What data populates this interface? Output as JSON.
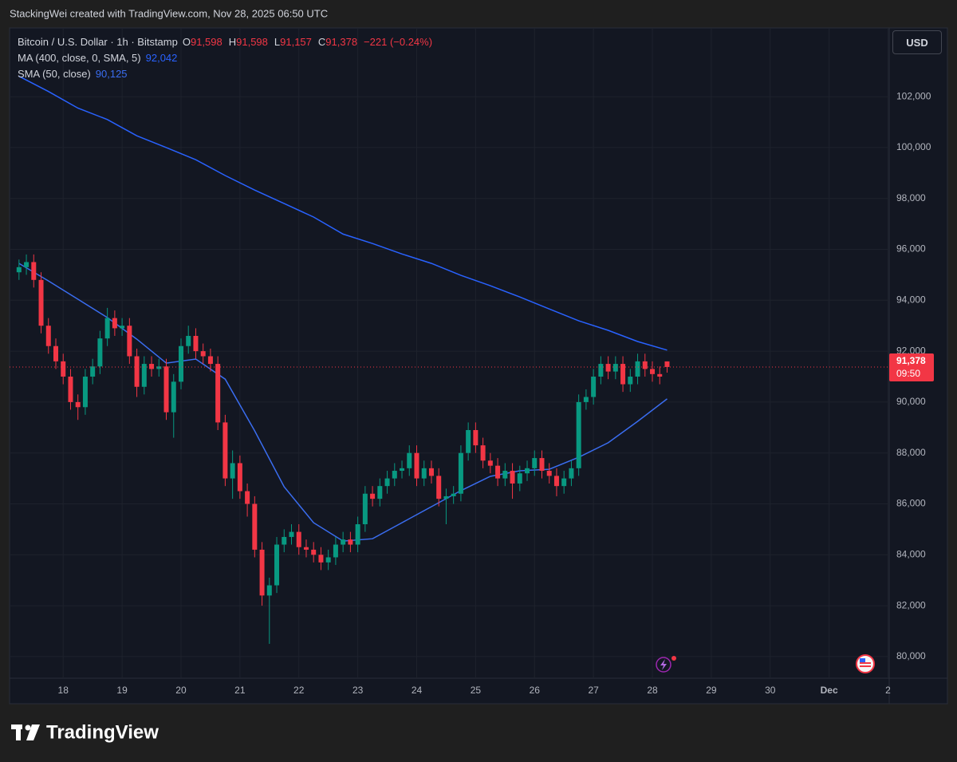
{
  "header": {
    "attribution": "StackingWei created with TradingView.com, Nov 28, 2025 06:50 UTC"
  },
  "chart_data": {
    "type": "candlestick",
    "title": "Bitcoin / U.S. Dollar · 1h · Bitstamp",
    "ohlc_legend": [
      {
        "key": "O",
        "value": "91,598"
      },
      {
        "key": "H",
        "value": "91,598"
      },
      {
        "key": "L",
        "value": "91,157"
      },
      {
        "key": "C",
        "value": "91,378"
      }
    ],
    "change": "−221 (−0.24%)",
    "currency": "USD",
    "up_color": "#089981",
    "down_color": "#f23645",
    "x": [
      17.25,
      17.375,
      17.5,
      17.625,
      17.75,
      17.875,
      18,
      18.125,
      18.25,
      18.375,
      18.5,
      18.625,
      18.75,
      18.875,
      19,
      19.125,
      19.25,
      19.375,
      19.5,
      19.625,
      19.75,
      19.875,
      20,
      20.125,
      20.25,
      20.375,
      20.5,
      20.625,
      20.75,
      20.875,
      21,
      21.125,
      21.25,
      21.375,
      21.5,
      21.625,
      21.75,
      21.875,
      22,
      22.125,
      22.25,
      22.375,
      22.5,
      22.625,
      22.75,
      22.875,
      23,
      23.125,
      23.25,
      23.375,
      23.5,
      23.625,
      23.75,
      23.875,
      24,
      24.125,
      24.25,
      24.375,
      24.5,
      24.625,
      24.75,
      24.875,
      25,
      25.125,
      25.25,
      25.375,
      25.5,
      25.625,
      25.75,
      25.875,
      26,
      26.125,
      26.25,
      26.375,
      26.5,
      26.625,
      26.75,
      26.875,
      27,
      27.125,
      27.25,
      27.375,
      27.5,
      27.625,
      27.75,
      27.875,
      28,
      28.125,
      28.25
    ],
    "open": [
      95100,
      95300,
      95500,
      94800,
      93000,
      92200,
      91600,
      91000,
      90000,
      89800,
      91000,
      91400,
      92500,
      93300,
      92900,
      93000,
      91800,
      90600,
      91500,
      91300,
      91400,
      89600,
      90800,
      92200,
      92600,
      92000,
      91800,
      91500,
      89200,
      87000,
      87600,
      86500,
      86000,
      84200,
      82400,
      82800,
      84400,
      84700,
      84900,
      84300,
      84200,
      84000,
      83700,
      83900,
      84400,
      84600,
      84400,
      85200,
      86400,
      86200,
      86700,
      87000,
      87300,
      87400,
      88000,
      87000,
      87400,
      87100,
      86200,
      86300,
      86400,
      88000,
      88900,
      88300,
      87700,
      87500,
      87000,
      87300,
      86800,
      87200,
      87400,
      87800,
      87300,
      87100,
      86700,
      87000,
      87400,
      90000,
      90200,
      91000,
      91500,
      91200,
      91500,
      90700,
      91000,
      91600,
      91300,
      91100,
      91598
    ],
    "high": [
      95600,
      95800,
      95800,
      95100,
      93300,
      92500,
      91900,
      91300,
      90300,
      91300,
      91700,
      92800,
      93700,
      93600,
      93300,
      93300,
      92100,
      91800,
      91800,
      91700,
      91700,
      91100,
      92500,
      93000,
      92900,
      92300,
      92100,
      91800,
      89500,
      88100,
      87900,
      86800,
      86300,
      84500,
      83100,
      84700,
      85000,
      85200,
      85200,
      84600,
      84500,
      84300,
      84200,
      84700,
      84900,
      84900,
      85500,
      86700,
      86700,
      87000,
      87300,
      87600,
      87700,
      88300,
      88300,
      87700,
      87700,
      87400,
      86600,
      86700,
      88300,
      89200,
      89200,
      88600,
      88000,
      87800,
      87600,
      87600,
      87500,
      87700,
      88100,
      88100,
      87600,
      87400,
      87300,
      87700,
      90300,
      90500,
      91300,
      91800,
      91800,
      91800,
      91800,
      91300,
      91900,
      91900,
      91600,
      91400,
      91598
    ],
    "low": [
      94800,
      95000,
      94500,
      92700,
      91900,
      91300,
      90700,
      89700,
      89300,
      89500,
      90700,
      91100,
      92200,
      92600,
      92600,
      91500,
      90200,
      90300,
      91000,
      91000,
      89300,
      88600,
      90500,
      91900,
      91700,
      91500,
      91200,
      88900,
      86700,
      86200,
      86200,
      85500,
      83900,
      82000,
      80500,
      82500,
      84100,
      84400,
      84000,
      83900,
      83700,
      83400,
      83400,
      83600,
      84100,
      84100,
      84100,
      84900,
      85900,
      85900,
      86400,
      86700,
      87000,
      87100,
      86700,
      86700,
      86800,
      85900,
      85200,
      86000,
      86100,
      87700,
      88000,
      87400,
      87200,
      86700,
      86700,
      86200,
      86500,
      86900,
      87100,
      87000,
      86800,
      86300,
      86400,
      86700,
      87100,
      89700,
      89900,
      90700,
      90900,
      90900,
      90400,
      90400,
      90700,
      91000,
      90800,
      90700,
      91157
    ],
    "close": [
      95300,
      95500,
      94800,
      93000,
      92200,
      91600,
      91000,
      90000,
      89800,
      91000,
      91400,
      92500,
      93300,
      92900,
      93000,
      91800,
      90600,
      91500,
      91300,
      91400,
      89600,
      90800,
      92200,
      92600,
      92000,
      91800,
      91500,
      89200,
      87000,
      87600,
      86500,
      86000,
      84200,
      82400,
      82800,
      84400,
      84700,
      84900,
      84300,
      84200,
      84000,
      83700,
      83900,
      84400,
      84600,
      84400,
      85200,
      86400,
      86200,
      86700,
      87000,
      87300,
      87400,
      88000,
      87000,
      87400,
      87100,
      86200,
      86300,
      86400,
      88000,
      88900,
      88300,
      87700,
      87500,
      87000,
      87300,
      86800,
      87200,
      87400,
      87800,
      87300,
      87100,
      86700,
      87000,
      87400,
      90000,
      90200,
      91000,
      91500,
      91200,
      91500,
      90700,
      91000,
      91600,
      91300,
      91100,
      91000,
      91378
    ],
    "series": [
      {
        "name": "MA (400, close, 0, SMA, 5)",
        "value_label": "92,042",
        "color": "#2962ff",
        "x": [
          17.25,
          17.75,
          18.25,
          18.75,
          19.25,
          19.75,
          20.25,
          20.75,
          21.25,
          21.75,
          22.25,
          22.75,
          23.25,
          23.75,
          24.25,
          24.75,
          25.25,
          25.75,
          26.25,
          26.75,
          27.25,
          27.75,
          28.25
        ],
        "values": [
          102800,
          102200,
          101550,
          101100,
          100460,
          100000,
          99520,
          98900,
          98330,
          97800,
          97270,
          96600,
          96230,
          95820,
          95450,
          94980,
          94570,
          94130,
          93660,
          93190,
          92820,
          92380,
          92042
        ]
      },
      {
        "name": "SMA (50, close)",
        "value_label": "90,125",
        "color": "#3a6df0",
        "x": [
          17.25,
          17.75,
          18.25,
          18.75,
          19.25,
          19.75,
          20.25,
          20.75,
          21.25,
          21.75,
          22.25,
          22.75,
          23.25,
          23.75,
          24.25,
          24.75,
          25.25,
          25.75,
          26.25,
          26.75,
          27.25,
          27.75,
          28.25
        ],
        "values": [
          95450,
          94760,
          94040,
          93320,
          92470,
          91530,
          91690,
          90900,
          88870,
          86670,
          85260,
          84540,
          84630,
          85260,
          85890,
          86520,
          87080,
          87300,
          87360,
          87830,
          88400,
          89240,
          90125
        ]
      }
    ],
    "last_price": {
      "value": 91378,
      "label": "91,378"
    },
    "countdown": "09:50",
    "xlim": [
      17.09,
      32.02
    ],
    "ylim": [
      79150,
      104700
    ],
    "xticks": [
      18,
      19,
      20,
      21,
      22,
      23,
      24,
      25,
      26,
      27,
      28,
      29,
      30,
      {
        "value": 31,
        "label": "Dec"
      },
      {
        "value": 32,
        "label": "2"
      }
    ],
    "yticks": [
      {
        "value": 80000,
        "label": "80,000"
      },
      {
        "value": 82000,
        "label": "82,000"
      },
      {
        "value": 84000,
        "label": "84,000"
      },
      {
        "value": 86000,
        "label": "86,000"
      },
      {
        "value": 88000,
        "label": "88,000"
      },
      {
        "value": 90000,
        "label": "90,000"
      },
      {
        "value": 92000,
        "label": "92,000"
      },
      {
        "value": 94000,
        "label": "94,000"
      },
      {
        "value": 96000,
        "label": "96,000"
      },
      {
        "value": 98000,
        "label": "98,000"
      },
      {
        "value": 100000,
        "label": "100,000"
      },
      {
        "value": 102000,
        "label": "102,000"
      }
    ],
    "grid": true
  },
  "footer": {
    "brand": "TradingView"
  }
}
